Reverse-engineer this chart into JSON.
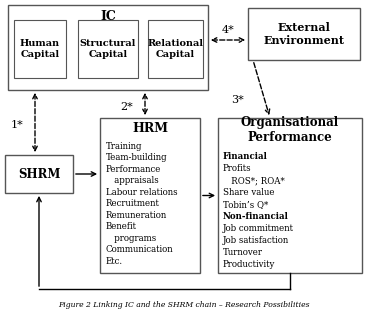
{
  "title": "Figure 2 Linking IC and the SHRM chain – Research Possibilities",
  "background_color": "#ffffff",
  "org_perf_content": [
    {
      "text": "Financial",
      "bold": true
    },
    {
      "text": "Profits",
      "bold": false
    },
    {
      "text": "   ROS*; ROA*",
      "bold": false
    },
    {
      "text": "Share value",
      "bold": false
    },
    {
      "text": "Tobin’s Q*",
      "bold": false
    },
    {
      "text": "Non-financial",
      "bold": true
    },
    {
      "text": "Job commitment",
      "bold": false
    },
    {
      "text": "Job satisfaction",
      "bold": false
    },
    {
      "text": "Turnover",
      "bold": false
    },
    {
      "text": "Productivity",
      "bold": false
    }
  ]
}
